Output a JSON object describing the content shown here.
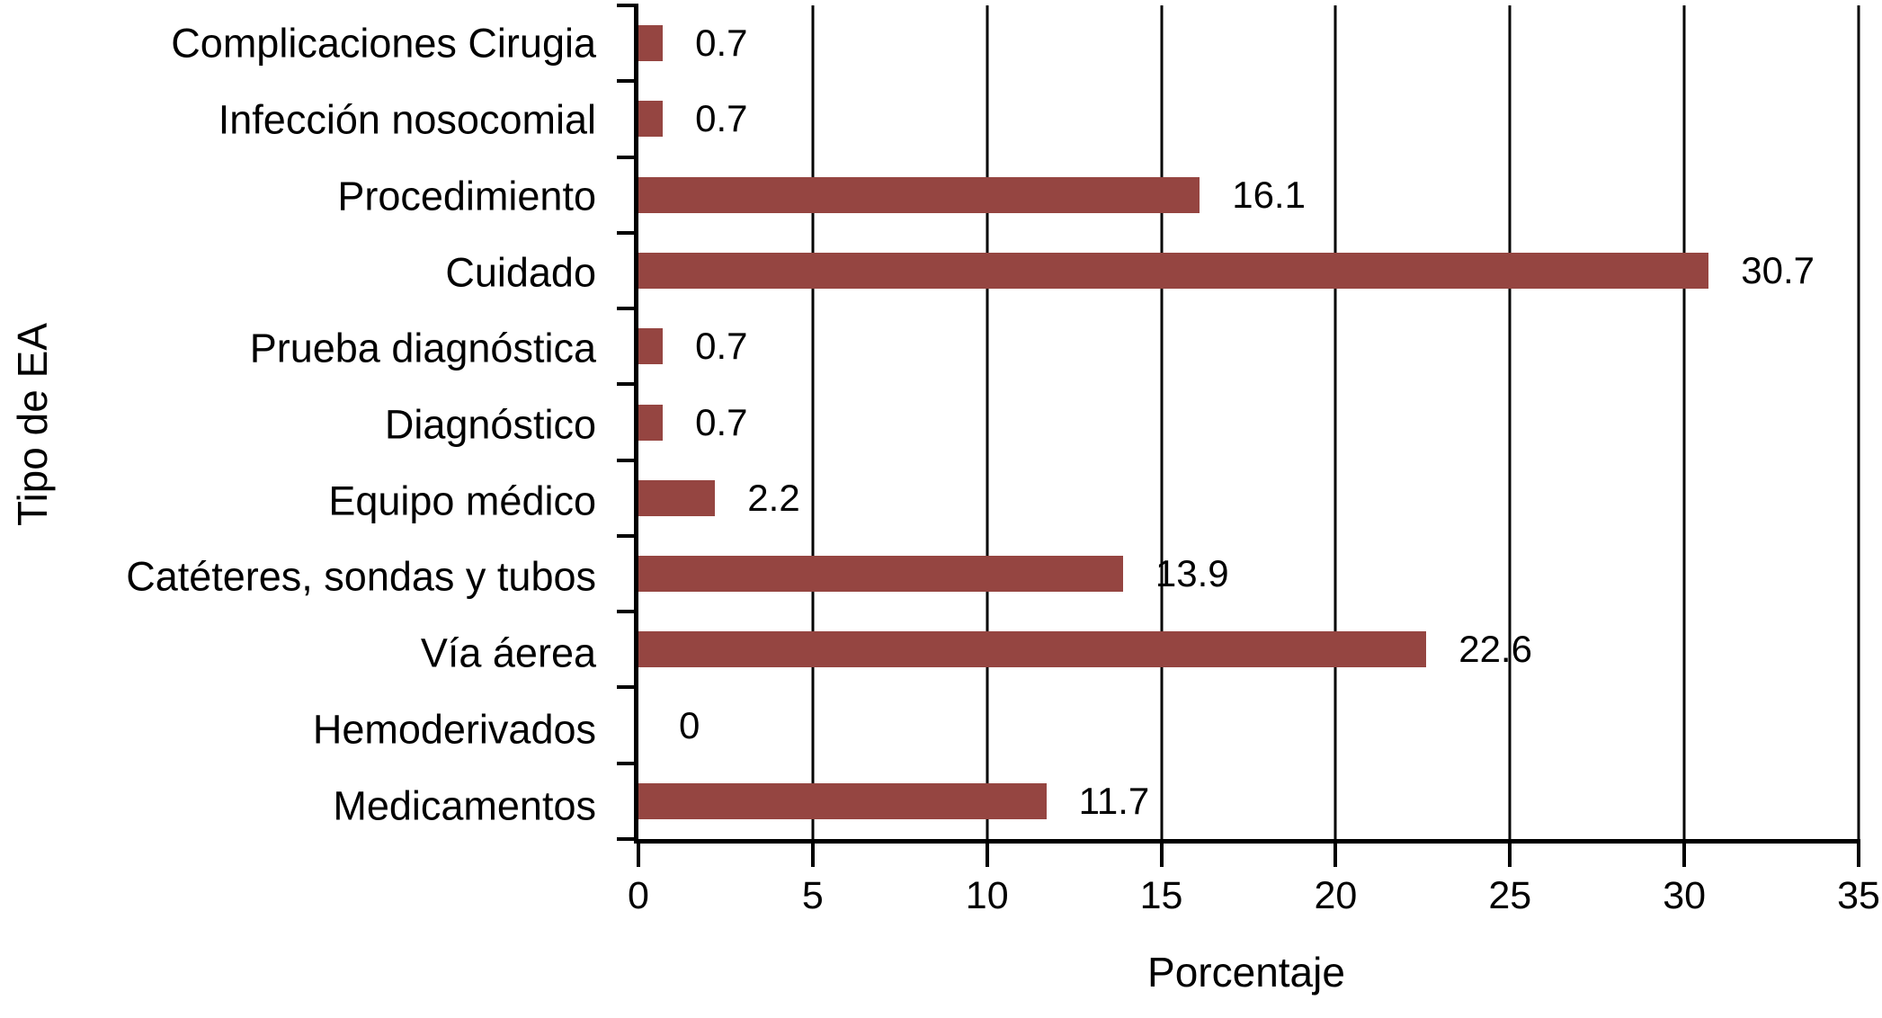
{
  "chart_data": {
    "type": "bar",
    "orientation": "horizontal",
    "title": "",
    "xlabel": "Porcentaje",
    "ylabel": "Tipo de EA",
    "xlim": [
      0,
      35
    ],
    "xticks": [
      0,
      5,
      10,
      15,
      20,
      25,
      30,
      35
    ],
    "grid": "vertical gridlines at each x tick",
    "legend": "none",
    "bar_color": "#954541",
    "axis_color": "#000000",
    "text_color": "#000000",
    "categories": [
      "Complicaciones Cirugia",
      "Infección nosocomial",
      "Procedimiento",
      "Cuidado",
      "Prueba diagnóstica",
      "Diagnóstico",
      "Equipo médico",
      "Catéteres, sondas y tubos",
      "Vía áerea",
      "Hemoderivados",
      "Medicamentos"
    ],
    "values": [
      0.7,
      0.7,
      16.1,
      30.7,
      0.7,
      0.7,
      2.2,
      13.9,
      22.6,
      0,
      11.7
    ],
    "value_labels": [
      "0.7",
      "0.7",
      "16.1",
      "30.7",
      "0.7",
      "0.7",
      "2.2",
      "13.9",
      "22.6",
      "0",
      "11.7"
    ]
  }
}
